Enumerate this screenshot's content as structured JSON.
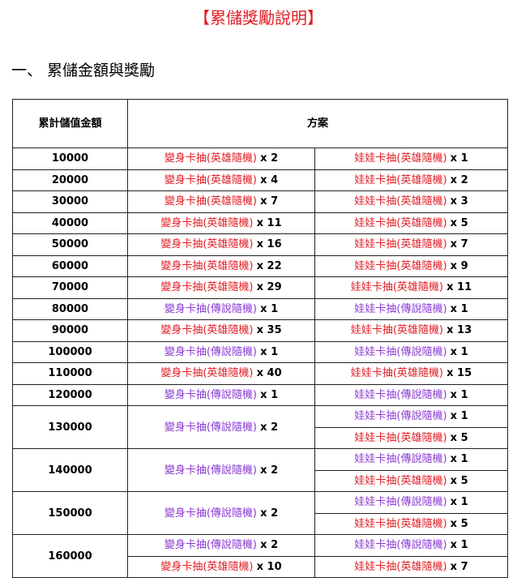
{
  "header": {
    "title": "【累儲獎勵說明】",
    "section": "一、 累儲金額與獎勵"
  },
  "table": {
    "columns": [
      "累計儲值金額",
      "方案"
    ],
    "rows": [
      {
        "amount": "10000",
        "left": [
          {
            "item": "變身卡抽(英雄隨機)",
            "qty": "x 2",
            "color": "#e01e25"
          }
        ],
        "right": [
          {
            "item": "娃娃卡抽(英雄隨機)",
            "qty": "x 1",
            "color": "#e01e25"
          }
        ]
      },
      {
        "amount": "20000",
        "left": [
          {
            "item": "變身卡抽(英雄隨機)",
            "qty": "x 4",
            "color": "#e01e25"
          }
        ],
        "right": [
          {
            "item": "娃娃卡抽(英雄隨機)",
            "qty": "x 2",
            "color": "#e01e25"
          }
        ]
      },
      {
        "amount": "30000",
        "left": [
          {
            "item": "變身卡抽(英雄隨機)",
            "qty": "x 7",
            "color": "#e01e25"
          }
        ],
        "right": [
          {
            "item": "娃娃卡抽(英雄隨機)",
            "qty": "x 3",
            "color": "#e01e25"
          }
        ]
      },
      {
        "amount": "40000",
        "left": [
          {
            "item": "變身卡抽(英雄隨機)",
            "qty": "x 11",
            "color": "#e01e25"
          }
        ],
        "right": [
          {
            "item": "娃娃卡抽(英雄隨機)",
            "qty": "x 5",
            "color": "#e01e25"
          }
        ]
      },
      {
        "amount": "50000",
        "left": [
          {
            "item": "變身卡抽(英雄隨機)",
            "qty": "x 16",
            "color": "#e01e25"
          }
        ],
        "right": [
          {
            "item": "娃娃卡抽(英雄隨機)",
            "qty": "x 7",
            "color": "#e01e25"
          }
        ]
      },
      {
        "amount": "60000",
        "left": [
          {
            "item": "變身卡抽(英雄隨機)",
            "qty": "x 22",
            "color": "#e01e25"
          }
        ],
        "right": [
          {
            "item": "娃娃卡抽(英雄隨機)",
            "qty": "x 9",
            "color": "#e01e25"
          }
        ]
      },
      {
        "amount": "70000",
        "left": [
          {
            "item": "變身卡抽(英雄隨機)",
            "qty": "x 29",
            "color": "#e01e25"
          }
        ],
        "right": [
          {
            "item": "娃娃卡抽(英雄隨機)",
            "qty": "x 11",
            "color": "#e01e25"
          }
        ]
      },
      {
        "amount": "80000",
        "left": [
          {
            "item": "變身卡抽(傳說隨機)",
            "qty": "x 1",
            "color": "#8a3bd1"
          }
        ],
        "right": [
          {
            "item": "娃娃卡抽(傳說隨機)",
            "qty": "x 1",
            "color": "#8a3bd1"
          }
        ]
      },
      {
        "amount": "90000",
        "left": [
          {
            "item": "變身卡抽(英雄隨機)",
            "qty": "x 35",
            "color": "#e01e25"
          }
        ],
        "right": [
          {
            "item": "娃娃卡抽(英雄隨機)",
            "qty": "x 13",
            "color": "#e01e25"
          }
        ]
      },
      {
        "amount": "100000",
        "left": [
          {
            "item": "變身卡抽(傳說隨機)",
            "qty": "x 1",
            "color": "#8a3bd1"
          }
        ],
        "right": [
          {
            "item": "娃娃卡抽(傳說隨機)",
            "qty": "x 1",
            "color": "#8a3bd1"
          }
        ]
      },
      {
        "amount": "110000",
        "left": [
          {
            "item": "變身卡抽(英雄隨機)",
            "qty": "x 40",
            "color": "#e01e25"
          }
        ],
        "right": [
          {
            "item": "娃娃卡抽(英雄隨機)",
            "qty": "x 15",
            "color": "#e01e25"
          }
        ]
      },
      {
        "amount": "120000",
        "left": [
          {
            "item": "變身卡抽(傳說隨機)",
            "qty": "x 1",
            "color": "#8a3bd1"
          }
        ],
        "right": [
          {
            "item": "娃娃卡抽(傳說隨機)",
            "qty": "x 1",
            "color": "#8a3bd1"
          }
        ]
      },
      {
        "amount": "130000",
        "left": [
          {
            "item": "變身卡抽(傳說隨機)",
            "qty": "x 2",
            "color": "#8a3bd1"
          }
        ],
        "right": [
          {
            "item": "娃娃卡抽(傳說隨機)",
            "qty": "x 1",
            "color": "#8a3bd1"
          },
          {
            "item": "娃娃卡抽(英雄隨機)",
            "qty": "x 5",
            "color": "#e01e25"
          }
        ]
      },
      {
        "amount": "140000",
        "left": [
          {
            "item": "變身卡抽(傳說隨機)",
            "qty": "x 2",
            "color": "#8a3bd1"
          }
        ],
        "right": [
          {
            "item": "娃娃卡抽(傳說隨機)",
            "qty": "x 1",
            "color": "#8a3bd1"
          },
          {
            "item": "娃娃卡抽(英雄隨機)",
            "qty": "x 5",
            "color": "#e01e25"
          }
        ]
      },
      {
        "amount": "150000",
        "left": [
          {
            "item": "變身卡抽(傳說隨機)",
            "qty": "x 2",
            "color": "#8a3bd1"
          }
        ],
        "right": [
          {
            "item": "娃娃卡抽(傳說隨機)",
            "qty": "x 1",
            "color": "#8a3bd1"
          },
          {
            "item": "娃娃卡抽(英雄隨機)",
            "qty": "x 5",
            "color": "#e01e25"
          }
        ]
      },
      {
        "amount": "160000",
        "left": [
          {
            "item": "變身卡抽(傳說隨機)",
            "qty": "x 2",
            "color": "#8a3bd1"
          },
          {
            "item": "變身卡抽(英雄隨機)",
            "qty": "x 10",
            "color": "#e01e25"
          }
        ],
        "right": [
          {
            "item": "娃娃卡抽(傳說隨機)",
            "qty": "x 1",
            "color": "#8a3bd1"
          },
          {
            "item": "娃娃卡抽(英雄隨機)",
            "qty": "x 7",
            "color": "#e01e25"
          }
        ]
      }
    ]
  }
}
